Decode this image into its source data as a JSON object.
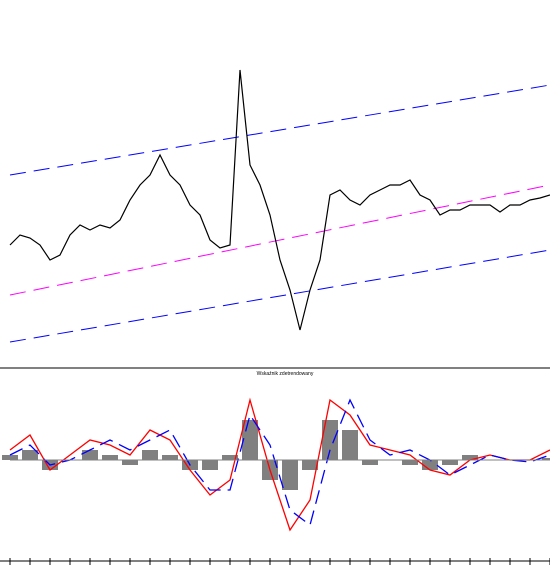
{
  "chart_data": [
    {
      "type": "line",
      "x": [
        0,
        1,
        2,
        3,
        4,
        5,
        6,
        7,
        8,
        9,
        10,
        11,
        12,
        13,
        14,
        15,
        16,
        17,
        18,
        19,
        20,
        21,
        22,
        23,
        24,
        25,
        26,
        27,
        28,
        29,
        30,
        31,
        32,
        33,
        34,
        35,
        36,
        37,
        38,
        39,
        40,
        41,
        42,
        43,
        44,
        45,
        46,
        47,
        48,
        49,
        50,
        51,
        52,
        53,
        54
      ],
      "xlim": [
        0,
        54
      ],
      "ylim": [
        0,
        285
      ],
      "series": [
        {
          "color": "#000000",
          "values": [
            100,
            110,
            107,
            100,
            85,
            90,
            110,
            120,
            115,
            120,
            117,
            125,
            145,
            160,
            170,
            190,
            170,
            160,
            140,
            130,
            105,
            97,
            100,
            275,
            180,
            160,
            130,
            85,
            55,
            15,
            55,
            85,
            150,
            155,
            145,
            140,
            150,
            155,
            160,
            160,
            165,
            150,
            145,
            130,
            135,
            135,
            140,
            140,
            140,
            133,
            140,
            140,
            145,
            147,
            150
          ]
        }
      ],
      "channels": [
        {
          "color": "#0000ff",
          "x": [
            0,
            54
          ],
          "values": [
            170,
            260
          ]
        },
        {
          "color": "#ff00ff",
          "x": [
            0,
            54
          ],
          "values": [
            50,
            160
          ]
        },
        {
          "color": "#0000ff",
          "x": [
            0,
            54
          ],
          "values": [
            3,
            95
          ]
        }
      ]
    },
    {
      "type": "combo",
      "title": "Wskaźnik zdetrendowany",
      "x": [
        0,
        1,
        2,
        3,
        4,
        5,
        6,
        7,
        8,
        9,
        10,
        11,
        12,
        13,
        14,
        15,
        16,
        17,
        18,
        19,
        20,
        21,
        22,
        23,
        24,
        25,
        26,
        27
      ],
      "xlim": [
        0,
        27
      ],
      "ylim": [
        -85,
        85
      ],
      "series": [
        {
          "type": "bar",
          "color": "#808080",
          "values": [
            5,
            10,
            -10,
            0,
            10,
            5,
            -5,
            10,
            5,
            -10,
            -10,
            5,
            40,
            -20,
            -30,
            -10,
            40,
            30,
            -5,
            0,
            -5,
            -10,
            -5,
            5,
            0,
            0,
            0,
            2
          ]
        },
        {
          "type": "line",
          "color": "#ff0000",
          "values": [
            10,
            25,
            -10,
            5,
            20,
            15,
            5,
            30,
            20,
            -10,
            -35,
            -20,
            60,
            -10,
            -70,
            -40,
            60,
            45,
            15,
            10,
            5,
            -10,
            -15,
            0,
            5,
            0,
            0,
            10
          ]
        },
        {
          "type": "line",
          "color": "#0000ff",
          "dashed": true,
          "values": [
            5,
            15,
            -5,
            0,
            10,
            20,
            10,
            20,
            30,
            -5,
            -30,
            -30,
            45,
            15,
            -50,
            -65,
            10,
            60,
            20,
            5,
            10,
            0,
            -15,
            -5,
            5,
            0,
            -2,
            5
          ]
        }
      ]
    }
  ]
}
